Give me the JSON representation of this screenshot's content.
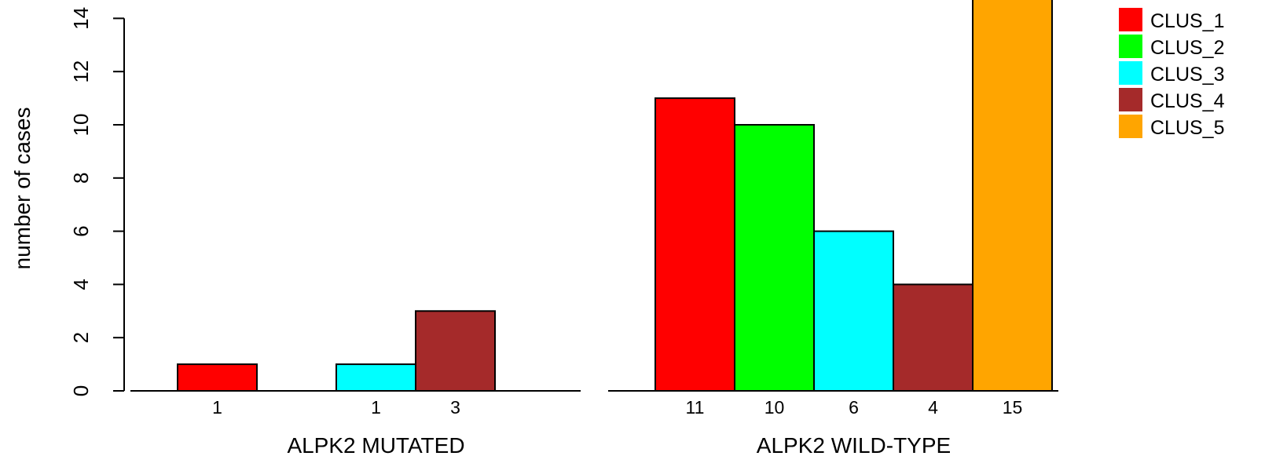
{
  "chart_data": {
    "type": "bar",
    "title": "",
    "ylabel": "number of cases",
    "ylim": [
      0,
      14
    ],
    "yticks": [
      0,
      2,
      4,
      6,
      8,
      10,
      12,
      14
    ],
    "groups": [
      {
        "label": "ALPK2 MUTATED",
        "values": [
          1,
          0,
          1,
          3,
          0
        ],
        "bar_labels": [
          "1",
          "",
          "1",
          "3",
          ""
        ]
      },
      {
        "label": "ALPK2 WILD-TYPE",
        "values": [
          11,
          10,
          6,
          4,
          15
        ],
        "bar_labels": [
          "11",
          "10",
          "6",
          "4",
          "15"
        ]
      }
    ],
    "series": [
      {
        "name": "CLUS_1",
        "color": "#ff0000"
      },
      {
        "name": "CLUS_2",
        "color": "#00ff00"
      },
      {
        "name": "CLUS_3",
        "color": "#00ffff"
      },
      {
        "name": "CLUS_4",
        "color": "#a52a2a"
      },
      {
        "name": "CLUS_5",
        "color": "#ffa500"
      }
    ],
    "legend_position": "top-right",
    "grid": false
  }
}
